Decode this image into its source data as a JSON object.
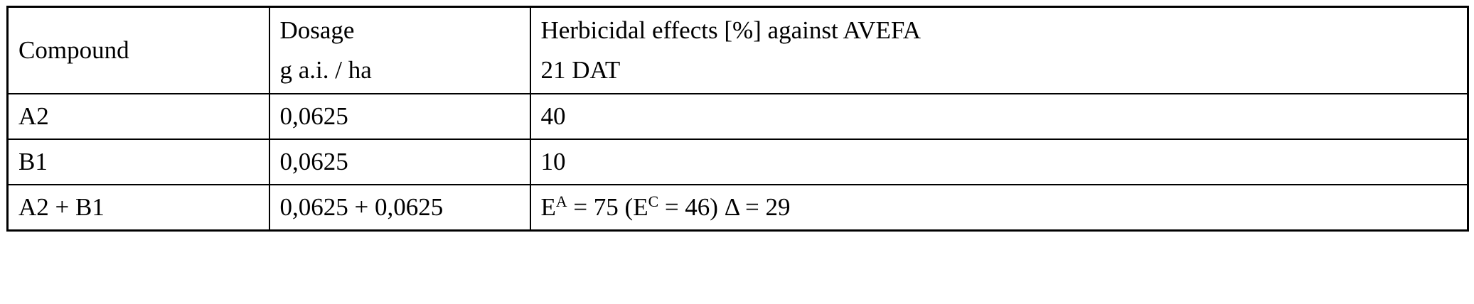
{
  "table": {
    "header": {
      "compound": "Compound",
      "dosage_line1": "Dosage",
      "dosage_line2": "g a.i. / ha",
      "effects_line1": "Herbicidal effects [%] against AVEFA",
      "effects_line2": "21 DAT"
    },
    "rows": [
      {
        "compound": "A2",
        "dosage": "0,0625",
        "effect": "40"
      },
      {
        "compound": "B1",
        "dosage": "0,0625",
        "effect": "10"
      },
      {
        "compound": "A2 + B1",
        "dosage": "0,0625 + 0,0625",
        "effect_rich": {
          "p1": "E",
          "sup1": "A",
          "p2": " = 75 (E",
          "sup2": "C",
          "p3": " = 46) Δ = 29"
        }
      }
    ]
  }
}
